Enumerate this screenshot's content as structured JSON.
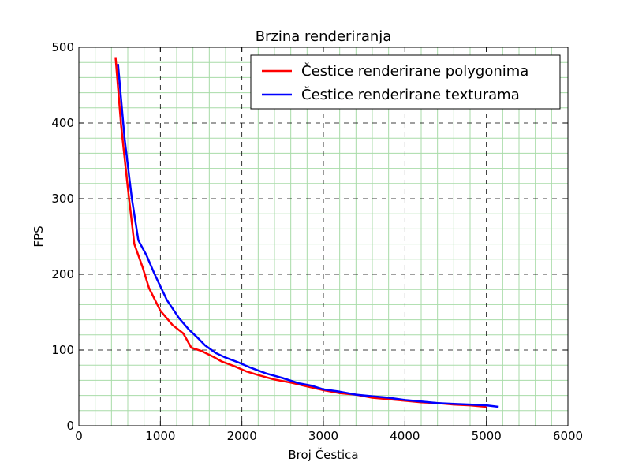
{
  "chart_data": {
    "type": "line",
    "title": "Brzina renderiranja",
    "xlabel": "Broj Čestica",
    "ylabel": "FPS",
    "xlim": [
      0,
      6000
    ],
    "ylim": [
      0,
      500
    ],
    "xticks": [
      0,
      1000,
      2000,
      3000,
      4000,
      5000,
      6000
    ],
    "yticks": [
      0,
      100,
      200,
      300,
      400,
      500
    ],
    "major_grid": true,
    "minor_grid": true,
    "legend_position": "top-right",
    "series": [
      {
        "name": "Čestice renderirane polygonima",
        "color": "#ff0000",
        "x": [
          450,
          520,
          600,
          680,
          780,
          860,
          1000,
          1150,
          1280,
          1380,
          1500,
          1650,
          1750,
          1900,
          2050,
          2200,
          2400,
          2600,
          2800,
          3000,
          3200,
          3400,
          3600,
          3800,
          4000,
          4200,
          4400,
          4600,
          4800,
          5000
        ],
        "y": [
          487,
          395,
          315,
          240,
          210,
          182,
          152,
          133,
          122,
          103,
          99,
          91,
          85,
          79,
          72,
          67,
          61,
          57,
          52,
          47,
          43,
          41,
          37,
          35,
          33,
          31,
          30,
          28,
          27,
          25
        ]
      },
      {
        "name": "Čestice renderirane texturama",
        "color": "#0000ff",
        "x": [
          480,
          560,
          650,
          730,
          830,
          930,
          1080,
          1230,
          1350,
          1450,
          1550,
          1680,
          1800,
          1950,
          2100,
          2300,
          2500,
          2700,
          2850,
          3000,
          3200,
          3400,
          3600,
          3800,
          4000,
          4200,
          4400,
          4600,
          4800,
          5000,
          5150
        ],
        "y": [
          478,
          380,
          300,
          245,
          225,
          200,
          166,
          142,
          127,
          117,
          106,
          96,
          90,
          84,
          77,
          69,
          63,
          56,
          53,
          48,
          45,
          41,
          39,
          37,
          34,
          32,
          30,
          29,
          28,
          27,
          25
        ]
      }
    ]
  }
}
